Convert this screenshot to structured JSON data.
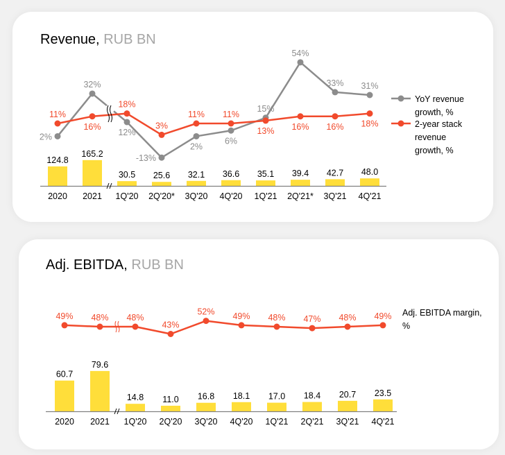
{
  "chart_data": [
    {
      "type": "bar+line",
      "title": "Revenue,",
      "title_unit": "RUB BN",
      "categories": [
        "2020",
        "2021",
        "1Q'20",
        "2Q'20*",
        "3Q'20",
        "4Q'20",
        "1Q'21",
        "2Q'21*",
        "3Q'21",
        "4Q'21"
      ],
      "axis_break_after_index": 1,
      "bars": {
        "name": "Revenue",
        "values": [
          124.8,
          165.2,
          30.5,
          25.6,
          32.1,
          36.6,
          35.1,
          39.4,
          42.7,
          48.0
        ],
        "labels": [
          "124.8",
          "165.2",
          "30.5",
          "25.6",
          "32.1",
          "36.6",
          "35.1",
          "39.4",
          "42.7",
          "48.0"
        ],
        "color": "#ffde3a"
      },
      "series": [
        {
          "name": "YoY revenue growth, %",
          "legend_lines": [
            "YoY revenue",
            "growth, %"
          ],
          "values": [
            2,
            32,
            12,
            -13,
            2,
            6,
            15,
            54,
            33,
            31
          ],
          "labels": [
            "2%",
            "32%",
            "12%",
            "-13%",
            "2%",
            "6%",
            "15%",
            "54%",
            "33%",
            "31%"
          ],
          "label_pos": [
            "left",
            "above",
            "below",
            "left",
            "below",
            "below",
            "above",
            "above",
            "above",
            "above"
          ],
          "color": "#8c8c8c",
          "label_color": "#8c8c8c"
        },
        {
          "name": "2-year stack revenue growth, %",
          "legend_lines": [
            "2-year stack",
            "revenue",
            "growth, %"
          ],
          "values": [
            11,
            16,
            18,
            3,
            11,
            11,
            13,
            16,
            16,
            18
          ],
          "labels": [
            "11%",
            "16%",
            "18%",
            "3%",
            "11%",
            "11%",
            "13%",
            "16%",
            "16%",
            "18%"
          ],
          "label_pos": [
            "above",
            "below",
            "above",
            "above",
            "above",
            "above",
            "below",
            "below",
            "below",
            "below"
          ],
          "color": "#f14a2c",
          "label_color": "#f14a2c"
        }
      ],
      "legend": "right"
    },
    {
      "type": "bar+line",
      "title": "Adj. EBITDA,",
      "title_unit": "RUB BN",
      "categories": [
        "2020",
        "2021",
        "1Q'20",
        "2Q'20",
        "3Q'20",
        "4Q'20",
        "1Q'21",
        "2Q'21",
        "3Q'21",
        "4Q'21"
      ],
      "axis_break_after_index": 1,
      "bars": {
        "name": "Adj. EBITDA",
        "values": [
          60.7,
          79.6,
          14.8,
          11.0,
          16.8,
          18.1,
          17.0,
          18.4,
          20.7,
          23.5
        ],
        "labels": [
          "60.7",
          "79.6",
          "14.8",
          "11.0",
          "16.8",
          "18.1",
          "17.0",
          "18.4",
          "20.7",
          "23.5"
        ],
        "color": "#ffde3a"
      },
      "series": [
        {
          "name": "Adj. EBITDA margin, %",
          "legend_lines": [
            "Adj. EBITDA margin,",
            "%"
          ],
          "values": [
            49,
            48,
            48,
            43,
            52,
            49,
            48,
            47,
            48,
            49
          ],
          "labels": [
            "49%",
            "48%",
            "48%",
            "43%",
            "52%",
            "49%",
            "48%",
            "47%",
            "48%",
            "49%"
          ],
          "label_pos": [
            "above",
            "above",
            "above",
            "above",
            "above",
            "above",
            "above",
            "above",
            "above",
            "above"
          ],
          "color": "#f14a2c",
          "label_color": "#f14a2c"
        }
      ],
      "legend": "right"
    }
  ]
}
